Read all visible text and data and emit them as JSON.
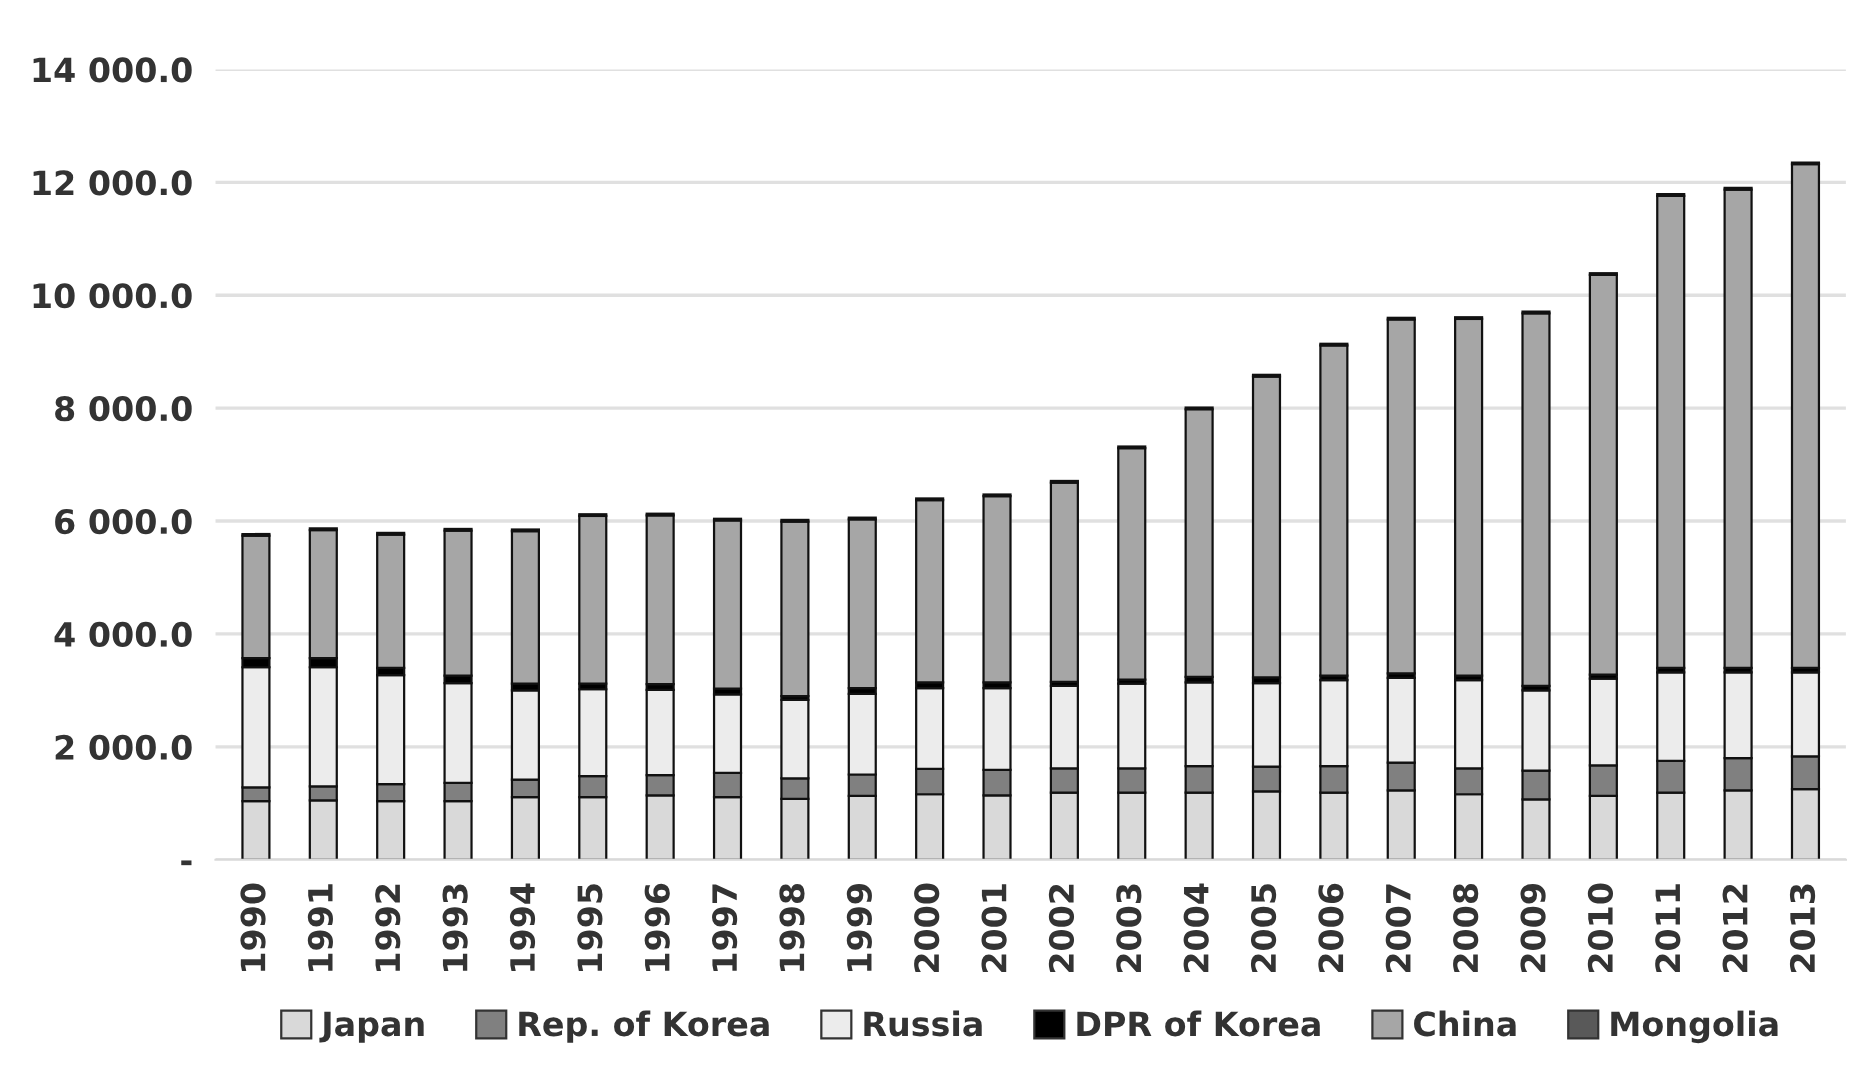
{
  "chart_data": {
    "type": "bar",
    "stacked": true,
    "categories": [
      "1990",
      "1991",
      "1992",
      "1993",
      "1994",
      "1995",
      "1996",
      "1997",
      "1998",
      "1999",
      "2000",
      "2001",
      "2002",
      "2003",
      "2004",
      "2005",
      "2006",
      "2007",
      "2008",
      "2009",
      "2010",
      "2011",
      "2012",
      "2013"
    ],
    "series": [
      {
        "name": "Japan",
        "color": "#d9d9d9",
        "values": [
          1040,
          1050,
          1040,
          1040,
          1110,
          1110,
          1140,
          1110,
          1080,
          1130,
          1160,
          1140,
          1190,
          1190,
          1190,
          1210,
          1190,
          1230,
          1160,
          1070,
          1130,
          1190,
          1230,
          1250
        ]
      },
      {
        "name": "Rep. of Korea",
        "color": "#808080",
        "values": [
          240,
          250,
          300,
          320,
          310,
          370,
          360,
          430,
          360,
          380,
          450,
          450,
          430,
          430,
          470,
          440,
          470,
          490,
          460,
          510,
          540,
          560,
          570,
          580
        ]
      },
      {
        "name": "Russia",
        "color": "#ececec",
        "values": [
          2130,
          2110,
          1930,
          1770,
          1580,
          1540,
          1510,
          1390,
          1390,
          1430,
          1430,
          1450,
          1460,
          1500,
          1480,
          1480,
          1520,
          1500,
          1560,
          1420,
          1540,
          1570,
          1520,
          1490
        ]
      },
      {
        "name": "DPR of Korea",
        "color": "#000000",
        "values": [
          160,
          160,
          130,
          130,
          120,
          100,
          100,
          100,
          70,
          100,
          100,
          100,
          70,
          70,
          100,
          100,
          80,
          80,
          80,
          80,
          70,
          80,
          80,
          80
        ]
      },
      {
        "name": "China",
        "color": "#a6a6a6",
        "values": [
          2170,
          2270,
          2360,
          2570,
          2700,
          2970,
          2990,
          2980,
          3090,
          2990,
          3230,
          3300,
          3530,
          4100,
          4740,
          5330,
          5850,
          6270,
          6320,
          6600,
          7080,
          8360,
          8470,
          8920
        ]
      },
      {
        "name": "Mongolia",
        "color": "#595959",
        "values": [
          30,
          30,
          30,
          30,
          30,
          30,
          30,
          30,
          30,
          30,
          30,
          30,
          30,
          30,
          30,
          30,
          30,
          30,
          30,
          30,
          30,
          30,
          30,
          30
        ]
      }
    ],
    "ylim": [
      0,
      14000
    ],
    "yticks": [
      {
        "value": 0,
        "label": "-"
      },
      {
        "value": 2000,
        "label": "2 000.0"
      },
      {
        "value": 4000,
        "label": "4 000.0"
      },
      {
        "value": 6000,
        "label": "6 000.0"
      },
      {
        "value": 8000,
        "label": "8 000.0"
      },
      {
        "value": 10000,
        "label": "10 000.0"
      },
      {
        "value": 12000,
        "label": "12 000.0"
      },
      {
        "value": 14000,
        "label": "14 000.0"
      }
    ],
    "grid": "y",
    "legend": "bottom"
  }
}
